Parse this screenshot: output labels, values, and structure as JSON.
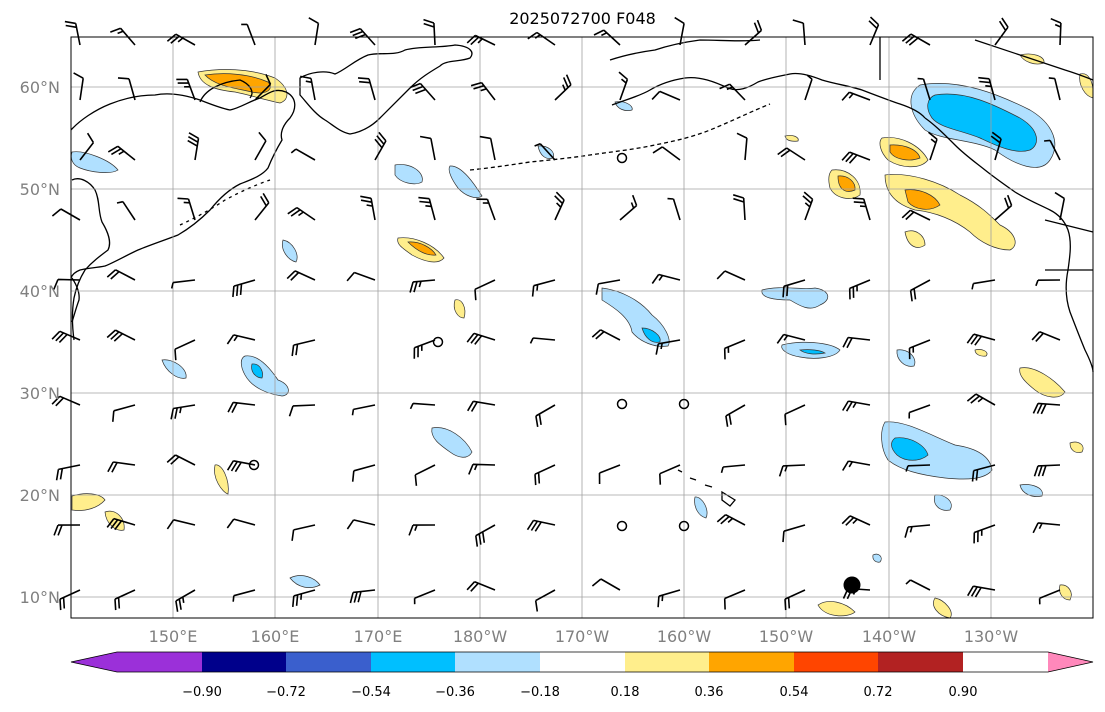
{
  "title": "2025072700 F048",
  "map": {
    "lon_labels": [
      "150°E",
      "160°E",
      "170°E",
      "180°W",
      "170°W",
      "160°W",
      "150°W",
      "140°W",
      "130°W"
    ],
    "lat_labels": [
      "60°N",
      "50°N",
      "40°N",
      "30°N",
      "20°N",
      "10°N"
    ],
    "grid": true
  },
  "colorbar": {
    "levels": [
      "−0.90",
      "−0.72",
      "−0.54",
      "−0.36",
      "−0.18",
      "0.18",
      "0.36",
      "0.54",
      "0.72",
      "0.90"
    ],
    "colors": [
      "#9b30d9",
      "#00008b",
      "#3a5fcd",
      "#00bfff",
      "#b0e0ff",
      "#ffffff",
      "#ffee8c",
      "#ffa500",
      "#ff4500",
      "#b22222",
      "#ff88bb"
    ]
  },
  "colors": {
    "coast": "#000000",
    "grid": "#a0a0a0",
    "blue_light": "#b0e0ff",
    "blue_mid": "#00bfff",
    "yellow": "#ffee8c",
    "orange": "#ffa500"
  }
}
